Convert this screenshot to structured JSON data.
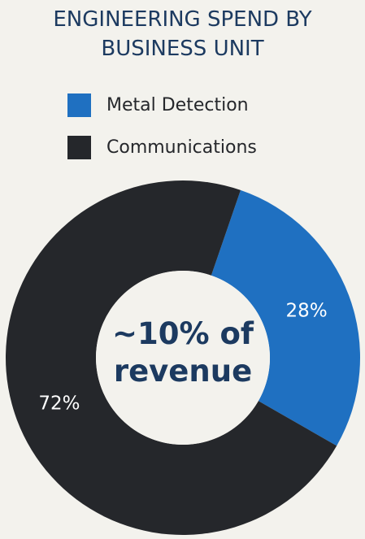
{
  "chart_data": {
    "type": "donut",
    "title": "ENGINEERING SPEND BY BUSINESS UNIT",
    "center_text": "~10% of revenue",
    "categories": [
      "Metal Detection",
      "Communications"
    ],
    "values": [
      28,
      72
    ],
    "value_labels": [
      "28%",
      "72%"
    ],
    "colors": [
      "#1f70c1",
      "#25272b"
    ],
    "legend": "top"
  }
}
